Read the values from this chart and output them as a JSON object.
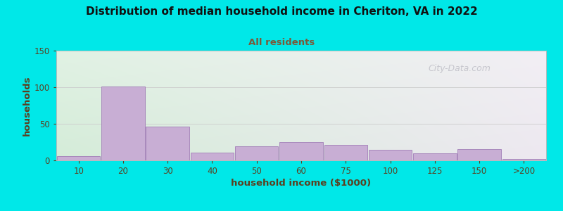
{
  "title": "Distribution of median household income in Cheriton, VA in 2022",
  "subtitle": "All residents",
  "xlabel": "household income ($1000)",
  "ylabel": "households",
  "title_color": "#111111",
  "subtitle_color": "#7a5a3a",
  "xlabel_color": "#5a4020",
  "ylabel_color": "#5a4020",
  "tick_color": "#5a4020",
  "bar_color": "#c8aed4",
  "bar_edge_color": "#a888bc",
  "background_outer": "#00e8e8",
  "background_inner_left": "#d4ecd8",
  "background_inner_right": "#ede8f0",
  "background_inner_top": "#f0f5f0",
  "categories": [
    "10",
    "20",
    "30",
    "40",
    "50",
    "60",
    "75",
    "100",
    "125",
    "150",
    ">200"
  ],
  "values": [
    6,
    101,
    46,
    11,
    19,
    25,
    21,
    14,
    10,
    15,
    2
  ],
  "ylim": [
    0,
    150
  ],
  "yticks": [
    0,
    50,
    100,
    150
  ],
  "watermark": "City-Data.com",
  "watermark_color": "#c0c0c8"
}
